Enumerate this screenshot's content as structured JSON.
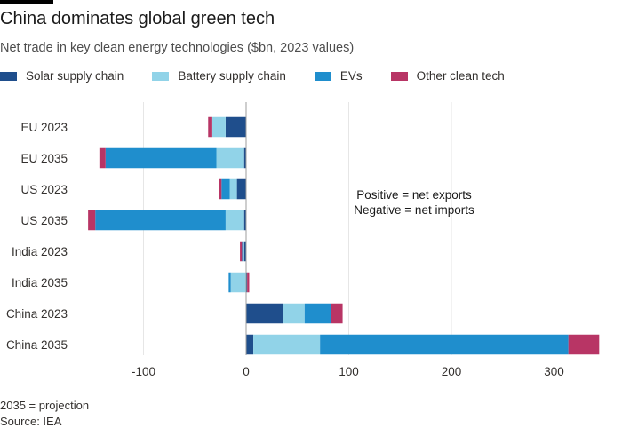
{
  "title": "China dominates global green tech",
  "subtitle": "Net trade in key clean energy technologies ($bn, 2023 values)",
  "footer": {
    "note": "2035 = projection",
    "source": "Source: IEA"
  },
  "chart_data": {
    "type": "bar",
    "orientation": "horizontal",
    "stacked": true,
    "categories": [
      "EU 2023",
      "EU 2035",
      "US 2023",
      "US 2035",
      "India 2023",
      "India 2035",
      "China 2023",
      "China 2035"
    ],
    "series": [
      {
        "name": "Solar supply chain",
        "color": "#1f4e8c",
        "values": [
          -20,
          -2,
          -9,
          -2,
          -2,
          1,
          36,
          7
        ]
      },
      {
        "name": "Battery supply chain",
        "color": "#91d3e8",
        "values": [
          -13,
          -27,
          -7,
          -18,
          -1,
          -15,
          21,
          65
        ]
      },
      {
        "name": "EVs",
        "color": "#1f8ecd",
        "values": [
          0,
          -108,
          -8,
          -127,
          -1,
          -2,
          26,
          242
        ]
      },
      {
        "name": "Other clean tech",
        "color": "#b83565",
        "values": [
          -4,
          -6,
          -2,
          -7,
          -2,
          2,
          11,
          30
        ]
      }
    ],
    "xlim": [
      -160,
      360
    ],
    "xticks": [
      -100,
      0,
      100,
      200,
      300
    ],
    "xtick_labels": [
      "-100",
      "0",
      "100",
      "200",
      "300"
    ],
    "grid": "vertical",
    "legend_position": "top",
    "annotation": [
      "Positive = net exports",
      "Negative = net imports"
    ]
  }
}
